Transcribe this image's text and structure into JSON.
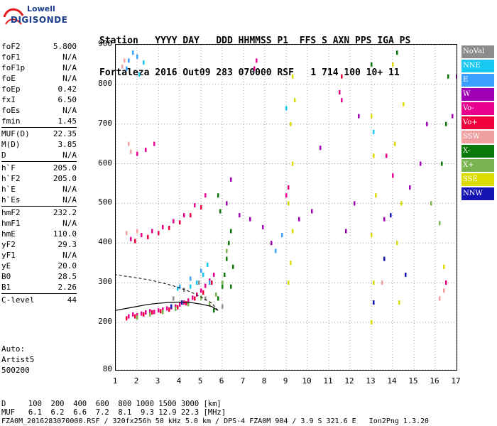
{
  "logo": {
    "line1": "Lowell",
    "line2": "DIGISONDE"
  },
  "header": {
    "row1": "Station   YYYY DAY   DDD HHMMSS P1  FFS S AXN PPS IGA PS",
    "row2": "Fortaleza 2016 Out09 283 070000 RSF   1 714 100 10+ 11"
  },
  "params_group1": [
    {
      "name": "foF2",
      "value": "5.800"
    },
    {
      "name": "foF1",
      "value": "N/A"
    },
    {
      "name": "foF1p",
      "value": "N/A"
    },
    {
      "name": "foE",
      "value": "N/A"
    },
    {
      "name": "foEp",
      "value": "0.42"
    },
    {
      "name": "fxI",
      "value": "6.50"
    },
    {
      "name": "foEs",
      "value": "N/A"
    },
    {
      "name": "fmin",
      "value": "1.45"
    }
  ],
  "params_group2": [
    {
      "name": "MUF(D)",
      "value": "22.35"
    },
    {
      "name": "M(D)",
      "value": "3.85"
    },
    {
      "name": "D",
      "value": "N/A"
    }
  ],
  "params_group3": [
    {
      "name": "h`F",
      "value": "205.0"
    },
    {
      "name": "h`F2",
      "value": "205.0"
    },
    {
      "name": "h`E",
      "value": "N/A"
    },
    {
      "name": "h`Es",
      "value": "N/A"
    }
  ],
  "params_group4": [
    {
      "name": "hmF2",
      "value": "232.2"
    },
    {
      "name": "hmF1",
      "value": "N/A"
    },
    {
      "name": "hmE",
      "value": "110.0"
    },
    {
      "name": "yF2",
      "value": "29.3"
    },
    {
      "name": "yF1",
      "value": "N/A"
    },
    {
      "name": "yE",
      "value": "20.0"
    },
    {
      "name": "B0",
      "value": "28.5"
    },
    {
      "name": "B1",
      "value": "2.26"
    }
  ],
  "clevel": {
    "name": "C-level",
    "value": "44"
  },
  "autoscale": {
    "line1": "Auto:",
    "line2": "Artist5",
    "line3": "500200"
  },
  "legend": [
    {
      "label": "NoVal",
      "color": "#8c8c8c"
    },
    {
      "label": "NNE",
      "color": "#19c8f0"
    },
    {
      "label": "E",
      "color": "#3aa0ff"
    },
    {
      "label": "W",
      "color": "#a000b4"
    },
    {
      "label": "Vo-",
      "color": "#e6008c"
    },
    {
      "label": "Vo+",
      "color": "#f0003c"
    },
    {
      "label": "SSW",
      "color": "#f0a0a0"
    },
    {
      "label": "X-",
      "color": "#0a780a"
    },
    {
      "label": "X+",
      "color": "#78b450"
    },
    {
      "label": "SSE",
      "color": "#dcdc00"
    },
    {
      "label": "NNW",
      "color": "#1414b4"
    }
  ],
  "bottom": {
    "d_row": "D     100  200  400  600  800 1000 1500 3000 [km]",
    "muf_row": "MUF   6.1  6.2  6.6  7.2  8.1  9.3 12.9 22.3 [MHz]",
    "footer": "FZA0M_2016283070000.RSF / 320fx256h 50 kHz 5.0 km / DPS-4 FZA0M 904 / 3.9 S 321.6 E   Ion2Png 1.3.20"
  },
  "chart_data": {
    "type": "scatter",
    "title": "",
    "xlabel": "",
    "ylabel": "",
    "xlim": [
      1,
      17
    ],
    "ylim": [
      80,
      900
    ],
    "x_ticks": [
      1,
      2,
      3,
      4,
      5,
      6,
      7,
      8,
      9,
      10,
      11,
      12,
      13,
      14,
      15,
      16,
      17
    ],
    "y_ticks": [
      80,
      200,
      300,
      400,
      500,
      600,
      700,
      800,
      900
    ],
    "grid": "dotted",
    "series": [
      {
        "name": "Vo-",
        "color": "#e6008c",
        "points": [
          [
            1.6,
            215
          ],
          [
            1.8,
            220
          ],
          [
            2.0,
            218
          ],
          [
            2.2,
            222
          ],
          [
            2.4,
            225
          ],
          [
            2.6,
            228
          ],
          [
            2.8,
            226
          ],
          [
            3.0,
            230
          ],
          [
            3.2,
            232
          ],
          [
            3.4,
            235
          ],
          [
            3.6,
            238
          ],
          [
            3.8,
            240
          ],
          [
            4.0,
            245
          ],
          [
            4.2,
            250
          ],
          [
            4.4,
            255
          ],
          [
            4.6,
            262
          ],
          [
            4.8,
            270
          ],
          [
            5.0,
            280
          ],
          [
            5.2,
            292
          ],
          [
            5.4,
            305
          ],
          [
            5.6,
            320
          ],
          [
            1.7,
            410
          ],
          [
            2.2,
            420
          ],
          [
            2.7,
            430
          ],
          [
            3.2,
            440
          ],
          [
            3.7,
            455
          ],
          [
            4.2,
            470
          ],
          [
            4.7,
            495
          ],
          [
            5.2,
            520
          ],
          [
            2.0,
            625
          ],
          [
            2.4,
            635
          ],
          [
            2.8,
            650
          ],
          [
            9.0,
            520
          ],
          [
            9.1,
            540
          ],
          [
            7.5,
            840
          ],
          [
            7.6,
            860
          ],
          [
            11.6,
            760
          ],
          [
            11.5,
            780
          ],
          [
            13.7,
            620
          ],
          [
            14.0,
            570
          ],
          [
            16.5,
            300
          ]
        ]
      },
      {
        "name": "Vo+",
        "color": "#f0003c",
        "points": [
          [
            1.5,
            210
          ],
          [
            1.9,
            215
          ],
          [
            2.3,
            220
          ],
          [
            2.7,
            225
          ],
          [
            3.1,
            228
          ],
          [
            3.5,
            232
          ],
          [
            3.9,
            238
          ],
          [
            4.3,
            248
          ],
          [
            4.7,
            260
          ],
          [
            5.1,
            275
          ],
          [
            5.5,
            300
          ],
          [
            1.9,
            405
          ],
          [
            2.5,
            415
          ],
          [
            3.0,
            425
          ],
          [
            3.5,
            438
          ],
          [
            4.0,
            452
          ],
          [
            4.5,
            470
          ],
          [
            5.0,
            490
          ],
          [
            11.6,
            820
          ]
        ]
      },
      {
        "name": "X-",
        "color": "#0a780a",
        "points": [
          [
            5.6,
            230
          ],
          [
            5.8,
            260
          ],
          [
            6.0,
            290
          ],
          [
            6.1,
            320
          ],
          [
            6.2,
            360
          ],
          [
            6.3,
            400
          ],
          [
            6.4,
            430
          ],
          [
            6.5,
            340
          ],
          [
            6.4,
            290
          ],
          [
            5.9,
            480
          ],
          [
            5.8,
            520
          ],
          [
            16.3,
            600
          ],
          [
            16.5,
            700
          ],
          [
            16.6,
            820
          ],
          [
            13.0,
            850
          ],
          [
            14.2,
            880
          ]
        ]
      },
      {
        "name": "X+",
        "color": "#78b450",
        "points": [
          [
            2.0,
            212
          ],
          [
            2.6,
            220
          ],
          [
            3.2,
            226
          ],
          [
            3.8,
            234
          ],
          [
            4.4,
            246
          ],
          [
            5.0,
            262
          ],
          [
            5.4,
            245
          ],
          [
            5.7,
            270
          ],
          [
            6.0,
            300
          ],
          [
            6.2,
            380
          ],
          [
            16.2,
            450
          ],
          [
            15.8,
            500
          ]
        ]
      },
      {
        "name": "SSE",
        "color": "#dcdc00",
        "points": [
          [
            9.1,
            300
          ],
          [
            9.2,
            350
          ],
          [
            9.3,
            430
          ],
          [
            9.1,
            500
          ],
          [
            9.3,
            600
          ],
          [
            9.2,
            700
          ],
          [
            9.4,
            760
          ],
          [
            9.3,
            820
          ],
          [
            13.0,
            200
          ],
          [
            13.1,
            300
          ],
          [
            13.0,
            420
          ],
          [
            13.2,
            520
          ],
          [
            13.1,
            620
          ],
          [
            13.0,
            720
          ],
          [
            14.3,
            250
          ],
          [
            14.2,
            400
          ],
          [
            14.4,
            500
          ],
          [
            14.1,
            650
          ],
          [
            14.5,
            750
          ],
          [
            14.0,
            850
          ],
          [
            16.4,
            340
          ]
        ]
      },
      {
        "name": "E",
        "color": "#3aa0ff",
        "points": [
          [
            4.0,
            290
          ],
          [
            4.5,
            310
          ],
          [
            5.0,
            330
          ],
          [
            5.4,
            300
          ],
          [
            1.5,
            840
          ],
          [
            1.6,
            860
          ],
          [
            1.8,
            880
          ],
          [
            2.0,
            870
          ],
          [
            8.5,
            380
          ],
          [
            8.8,
            420
          ]
        ]
      },
      {
        "name": "W",
        "color": "#a000b4",
        "points": [
          [
            6.2,
            500
          ],
          [
            6.4,
            560
          ],
          [
            6.8,
            470
          ],
          [
            7.3,
            460
          ],
          [
            7.9,
            440
          ],
          [
            8.3,
            400
          ],
          [
            9.6,
            460
          ],
          [
            10.2,
            480
          ],
          [
            11.8,
            430
          ],
          [
            12.2,
            500
          ],
          [
            13.6,
            460
          ],
          [
            14.8,
            540
          ],
          [
            15.3,
            600
          ],
          [
            15.6,
            700
          ],
          [
            16.8,
            720
          ],
          [
            17.0,
            820
          ],
          [
            12.4,
            720
          ],
          [
            10.6,
            640
          ]
        ]
      },
      {
        "name": "NNE",
        "color": "#19c8f0",
        "points": [
          [
            4.5,
            290
          ],
          [
            4.8,
            300
          ],
          [
            5.1,
            320
          ],
          [
            5.3,
            345
          ],
          [
            3.9,
            285
          ],
          [
            13.1,
            680
          ],
          [
            9.0,
            740
          ],
          [
            2.1,
            825
          ],
          [
            2.3,
            855
          ]
        ]
      },
      {
        "name": "SSW",
        "color": "#f0a0a0",
        "points": [
          [
            1.3,
            845
          ],
          [
            1.4,
            860
          ],
          [
            1.6,
            650
          ],
          [
            1.7,
            630
          ],
          [
            1.5,
            425
          ],
          [
            2.0,
            430
          ],
          [
            16.2,
            260
          ],
          [
            16.4,
            280
          ],
          [
            13.5,
            300
          ]
        ]
      },
      {
        "name": "NNW",
        "color": "#1414b4",
        "points": [
          [
            3.6,
            240
          ],
          [
            4.1,
            250
          ],
          [
            13.1,
            250
          ],
          [
            13.6,
            360
          ],
          [
            13.9,
            470
          ],
          [
            14.6,
            320
          ]
        ]
      },
      {
        "name": "NoVal",
        "color": "#8c8c8c",
        "points": [
          [
            3.7,
            260
          ],
          [
            4.2,
            282
          ],
          [
            4.9,
            300
          ],
          [
            5.2,
            260
          ],
          [
            6.0,
            240
          ]
        ]
      }
    ],
    "profile": [
      [
        5.8,
        230
      ],
      [
        5.5,
        240
      ],
      [
        5.0,
        246
      ],
      [
        4.5,
        250
      ],
      [
        4.0,
        251
      ],
      [
        3.5,
        250
      ],
      [
        3.0,
        248
      ],
      [
        2.5,
        245
      ],
      [
        2.0,
        240
      ],
      [
        1.5,
        235
      ],
      [
        1.0,
        230
      ]
    ]
  }
}
